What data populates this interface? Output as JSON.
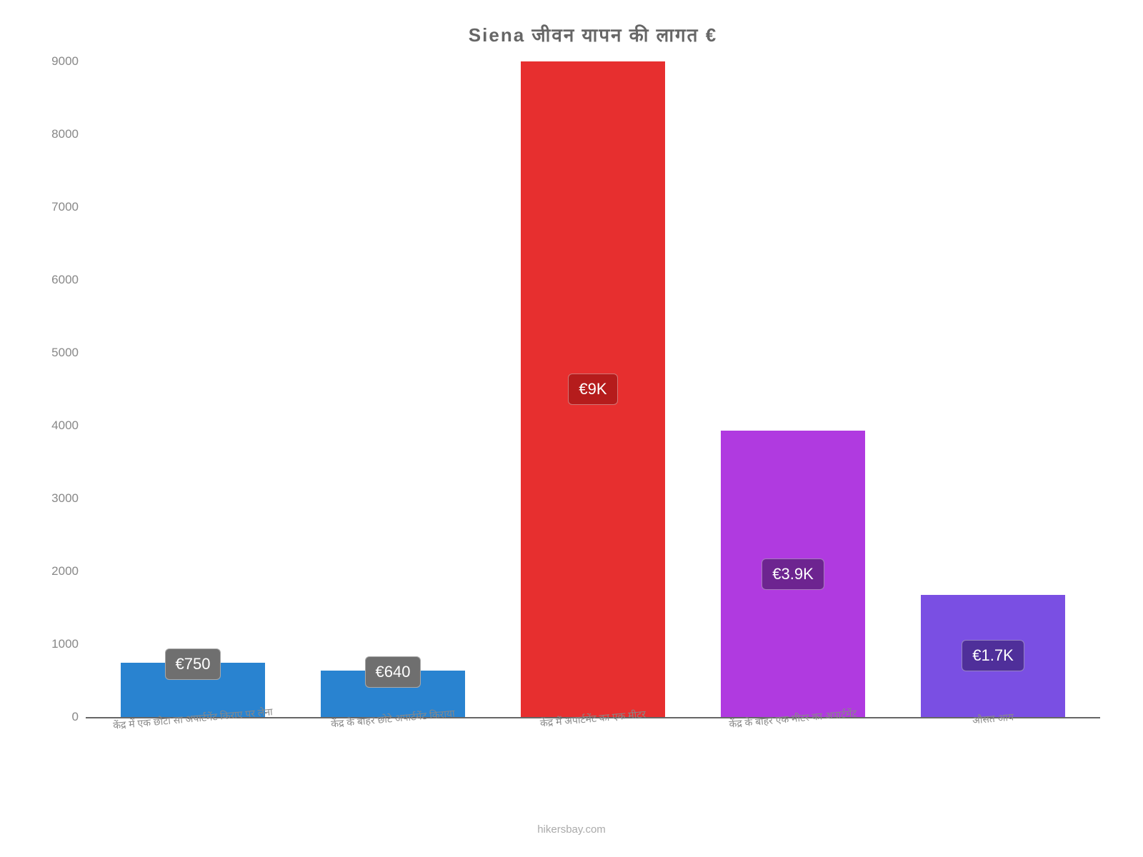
{
  "chart": {
    "type": "bar",
    "title": "Siena जीवन    यापन    की    लागत    €",
    "title_fontsize": 26,
    "title_color": "#666666",
    "background_color": "#ffffff",
    "axis_color": "#666666",
    "tick_color": "#888888",
    "label_fontsize": 14,
    "tick_fontsize": 17,
    "ylim": [
      0,
      9000
    ],
    "ytick_step": 1000,
    "yticks": [
      0,
      1000,
      2000,
      3000,
      4000,
      5000,
      6000,
      7000,
      8000,
      9000
    ],
    "bar_width": 0.72,
    "categories": [
      "केंद्र में एक छोटा सा अपार्टमेंट किराए पर लेना",
      "केंद्र के बाहर छोटे अपार्टमेंट किराया",
      "केंद्र में अपार्टमेंट का एक मीटर",
      "केंद्र के बाहर एक मीटर का अपार्टमेंट",
      "औसत आय"
    ],
    "values": [
      750,
      640,
      9000,
      3930,
      1680
    ],
    "display_labels": [
      "€750",
      "€640",
      "€9K",
      "€3.9K",
      "€1.7K"
    ],
    "bar_colors": [
      "#2983d0",
      "#2983d0",
      "#e72f2f",
      "#b03ae0",
      "#7a4fe3"
    ],
    "badge_colors": [
      "#6f6f6f",
      "#6f6f6f",
      "#b51c1c",
      "#6d2490",
      "#4f2f9a"
    ],
    "badge_positions": [
      "top",
      "top",
      "middle",
      "middle",
      "middle"
    ],
    "badge_fontsize": 22,
    "watermark": "hikersbay.com",
    "watermark_color": "#aaaaaa"
  }
}
